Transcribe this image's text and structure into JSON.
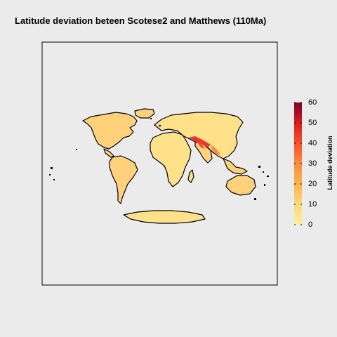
{
  "title": "Latitude deviation beteen Scotese2 and Matthews (110Ma)",
  "legend": {
    "title": "Latitude deviation",
    "ticks": [
      "0",
      "10",
      "20",
      "30",
      "40",
      "50",
      "60"
    ],
    "range": [
      0,
      60
    ],
    "colors": [
      "#ffeda0",
      "#fed976",
      "#feb24c",
      "#fd8d3c",
      "#fc4e2a",
      "#e31a1c",
      "#b10026",
      "#800026"
    ]
  },
  "map": {
    "background": "#ebebeb",
    "frame_color": "#000000",
    "land_color_low": "#ffe18a",
    "land_color_mid": "#fed17a",
    "land_color_high": "#e8392a"
  }
}
